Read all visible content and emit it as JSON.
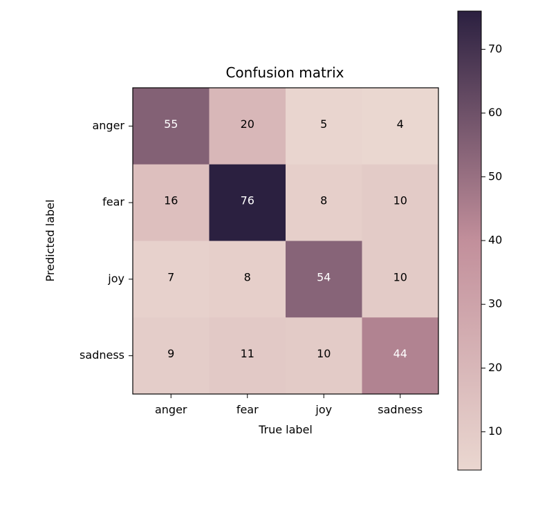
{
  "chart_data": {
    "type": "heatmap",
    "title": "Confusion matrix",
    "xlabel": "True label",
    "ylabel": "Predicted label",
    "x_categories": [
      "anger",
      "fear",
      "joy",
      "sadness"
    ],
    "y_categories": [
      "anger",
      "fear",
      "joy",
      "sadness"
    ],
    "values": [
      [
        55,
        20,
        5,
        4
      ],
      [
        16,
        76,
        8,
        10
      ],
      [
        7,
        8,
        54,
        10
      ],
      [
        9,
        11,
        10,
        44
      ]
    ],
    "colorbar": {
      "min": 4,
      "max": 76,
      "ticks": [
        10,
        20,
        30,
        40,
        50,
        60,
        70
      ],
      "colors": {
        "low": "#ead7d0",
        "mid": "#c28f9b",
        "high": "#2b2040"
      }
    },
    "grid": false,
    "legend": "colorbar-right"
  }
}
